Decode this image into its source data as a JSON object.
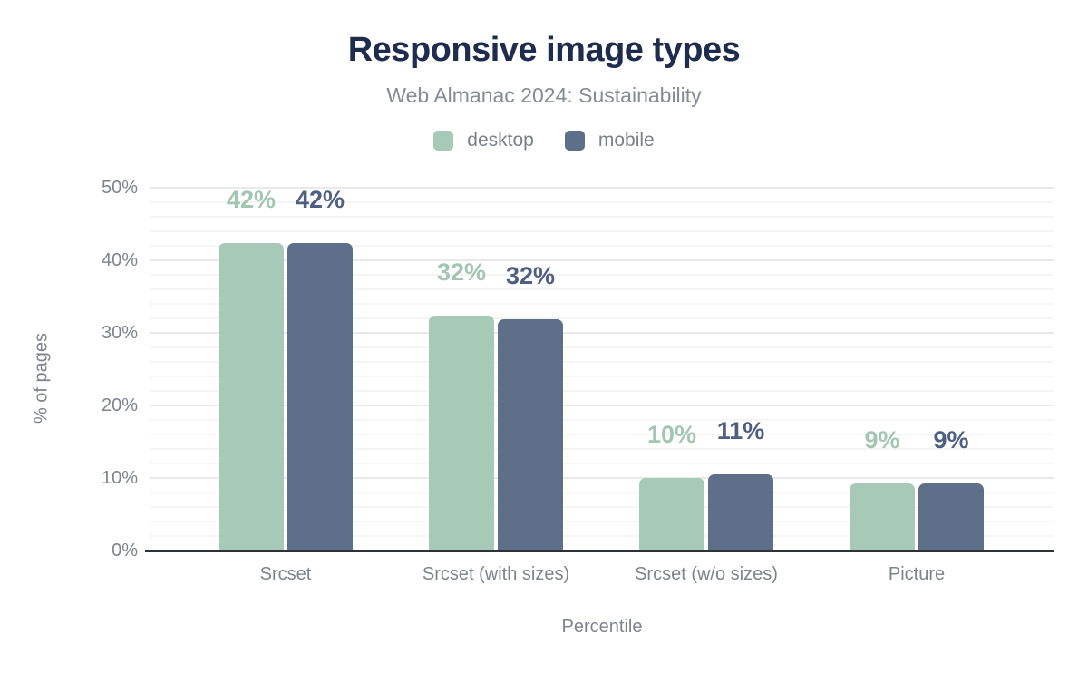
{
  "chart_data": {
    "type": "bar",
    "title": "Responsive image types",
    "subtitle": "Web Almanac 2024: Sustainability",
    "xlabel": "Percentile",
    "ylabel": "% of pages",
    "categories": [
      "Srcset",
      "Srcset (with sizes)",
      "Srcset (w/o sizes)",
      "Picture"
    ],
    "series": [
      {
        "name": "desktop",
        "color": "#a7c9b7",
        "label_color": "#a3c6b3",
        "values": [
          42.4,
          32.4,
          10.0,
          9.2
        ],
        "labels": [
          "42%",
          "32%",
          "10%",
          "9%"
        ]
      },
      {
        "name": "mobile",
        "color": "#5e7089",
        "label_color": "#4e5f82",
        "values": [
          42.4,
          31.9,
          10.5,
          9.2
        ],
        "labels": [
          "42%",
          "32%",
          "11%",
          "9%"
        ]
      }
    ],
    "ylim": [
      0,
      50
    ],
    "yticks": [
      {
        "v": 0,
        "label": "0%"
      },
      {
        "v": 10,
        "label": "10%"
      },
      {
        "v": 20,
        "label": "20%"
      },
      {
        "v": 30,
        "label": "30%"
      },
      {
        "v": 40,
        "label": "40%"
      },
      {
        "v": 50,
        "label": "50%"
      }
    ],
    "grid": {
      "major_step": 10,
      "minor_step": 2,
      "show": true
    },
    "legend_position": "top"
  },
  "styles": {
    "background": "#ffffff",
    "title_color": "#1e2c4d",
    "subtitle_color": "#868b95",
    "axis_text_color": "#7e838d",
    "legend_text_color": "#7a8088",
    "axis_line_color": "#2e3236",
    "major_grid_color": "#e9e9e9",
    "minor_grid_color": "#f5f5f5"
  }
}
